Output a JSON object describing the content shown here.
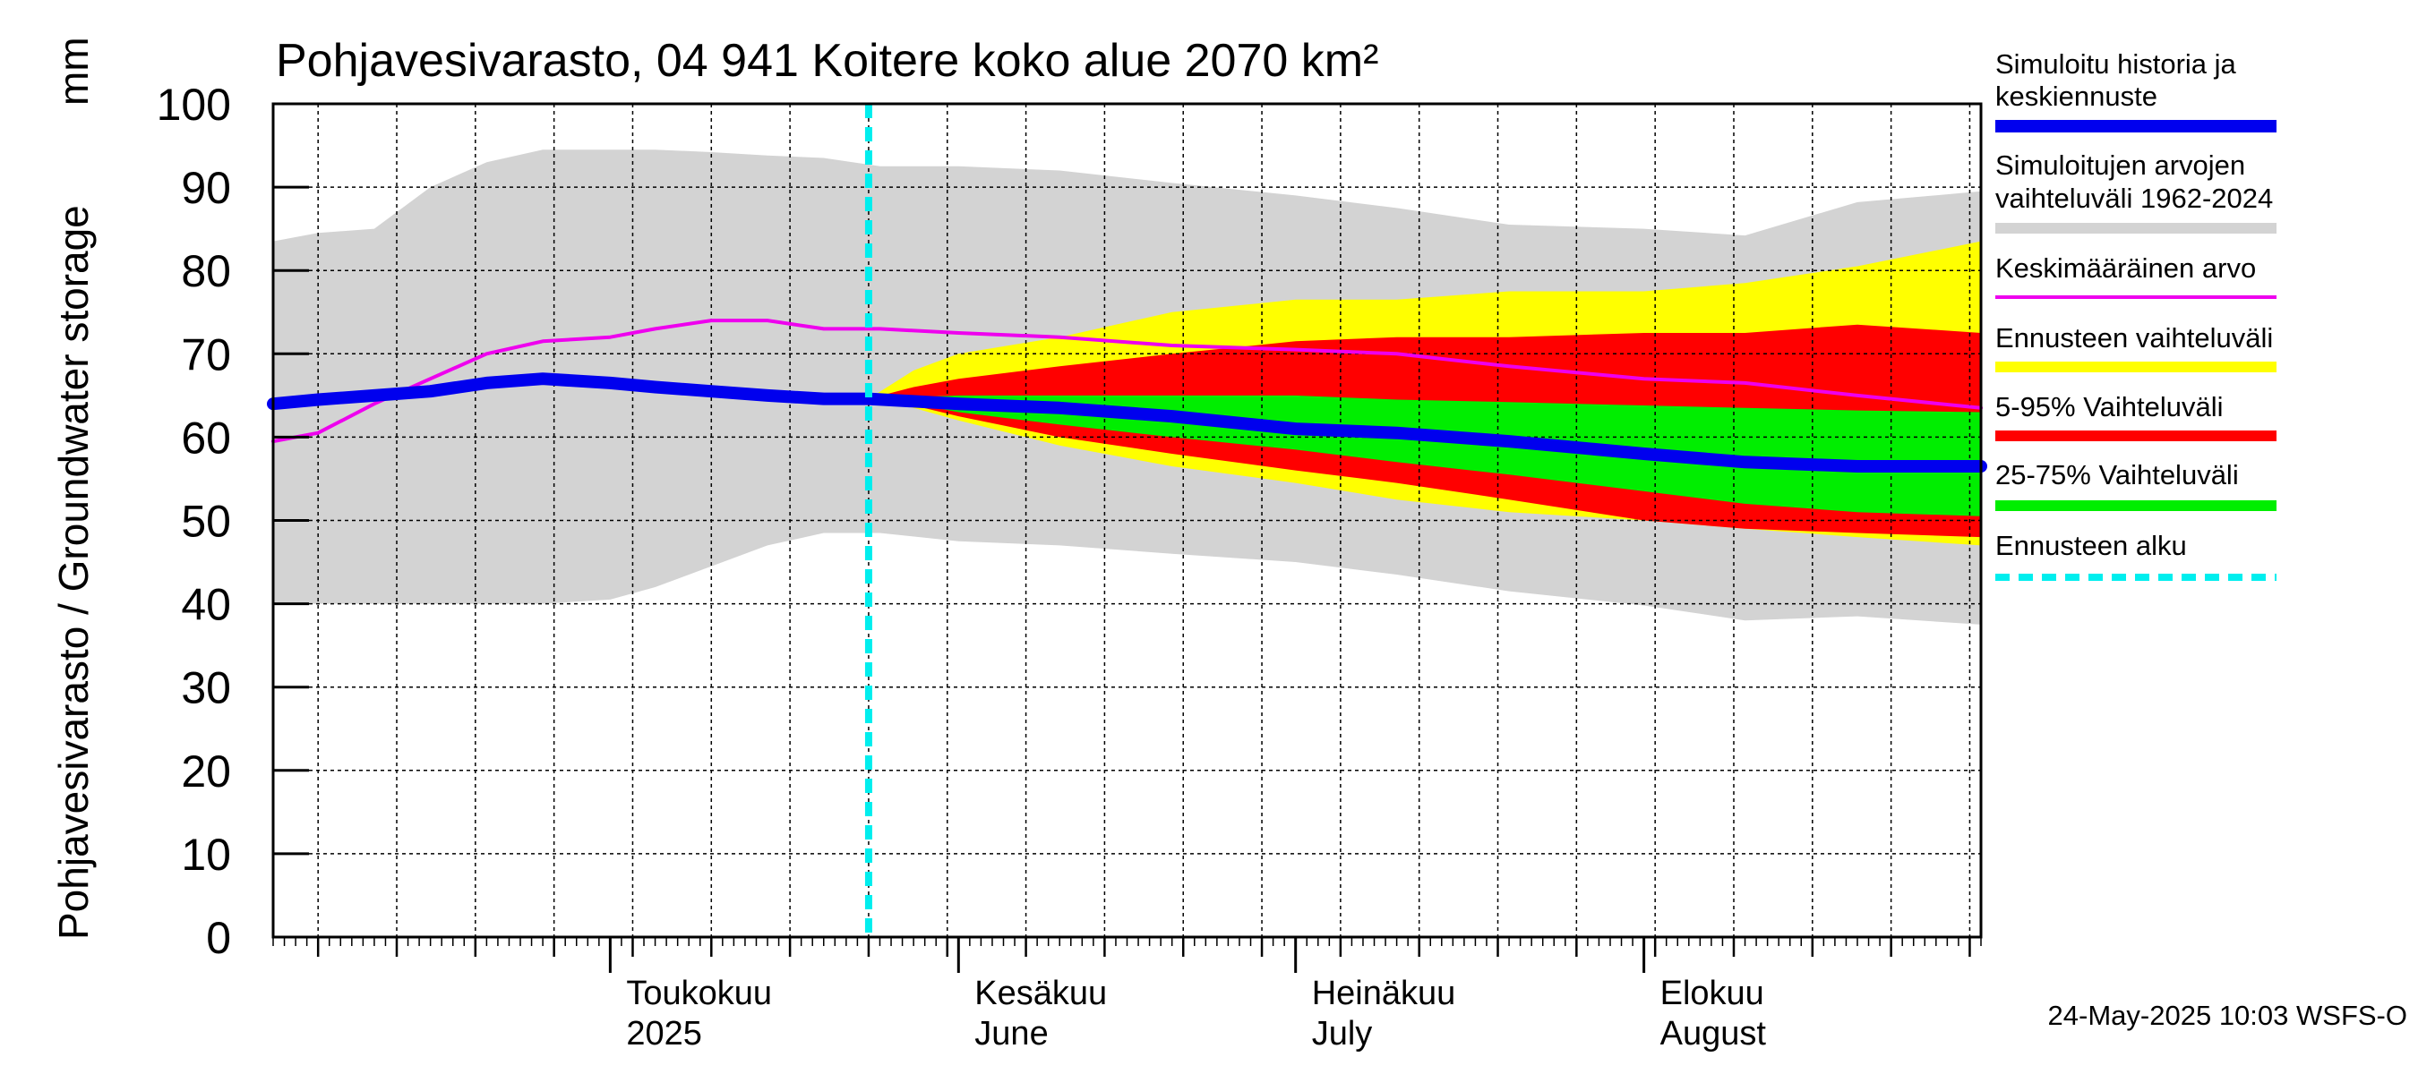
{
  "chart_data": {
    "type": "area",
    "title": "Pohjavesivarasto, 04 941 Koitere koko alue 2070 km²",
    "ylabel": "Pohjavesivarasto / Groundwater storage",
    "yunit": "mm",
    "ylim": [
      0,
      100
    ],
    "yticks": [
      0,
      10,
      20,
      30,
      40,
      50,
      60,
      70,
      80,
      90,
      100
    ],
    "xlim": [
      "2025-04-01",
      "2025-08-31"
    ],
    "grid": true,
    "x_labels": [
      {
        "date": "2025-05-01",
        "line1": "Toukokuu",
        "line2": "2025"
      },
      {
        "date": "2025-06-01",
        "line1": "Kesäkuu",
        "line2": "June"
      },
      {
        "date": "2025-07-01",
        "line1": "Heinäkuu",
        "line2": "July"
      },
      {
        "date": "2025-08-01",
        "line1": "Elokuu",
        "line2": "August"
      }
    ],
    "forecast_start": "2025-05-24",
    "legend_position": "right",
    "legend": [
      {
        "label": "Simuloitu historia ja keskiennuste",
        "lines": [
          "Simuloitu historia ja",
          "keskiennuste"
        ],
        "color": "#0000ee",
        "style": "thick"
      },
      {
        "label": "Simuloitujen arvojen vaihteluväli 1962-2024",
        "lines": [
          "Simuloitujen arvojen",
          "vaihteluväli 1962-2024"
        ],
        "color": "#d3d3d3",
        "style": "band"
      },
      {
        "label": "Keskimääräinen arvo",
        "lines": [
          "Keskimääräinen arvo"
        ],
        "color": "#ee00ee",
        "style": "line"
      },
      {
        "label": "Ennusteen vaihteluväli",
        "lines": [
          "Ennusteen vaihteluväli"
        ],
        "color": "#ffff00",
        "style": "band"
      },
      {
        "label": "5-95% Vaihteluväli",
        "lines": [
          "5-95% Vaihteluväli"
        ],
        "color": "#ff0000",
        "style": "band"
      },
      {
        "label": "25-75% Vaihteluväli",
        "lines": [
          "25-75% Vaihteluväli"
        ],
        "color": "#00ee00",
        "style": "band"
      },
      {
        "label": "Ennusteen alku",
        "lines": [
          "Ennusteen alku"
        ],
        "color": "#00eeee",
        "style": "dashed"
      }
    ],
    "series": [
      {
        "name": "Simuloitujen arvojen vaihteluväli 1962-2024",
        "kind": "band",
        "color": "#d3d3d3",
        "x": [
          "2025-04-01",
          "2025-04-05",
          "2025-04-10",
          "2025-04-15",
          "2025-04-20",
          "2025-04-25",
          "2025-05-01",
          "2025-05-05",
          "2025-05-10",
          "2025-05-15",
          "2025-05-20",
          "2025-05-25",
          "2025-06-01",
          "2025-06-10",
          "2025-06-20",
          "2025-07-01",
          "2025-07-10",
          "2025-07-20",
          "2025-08-01",
          "2025-08-10",
          "2025-08-20",
          "2025-08-31"
        ],
        "upper": [
          83.5,
          84.5,
          85,
          90,
          93,
          94.5,
          94.5,
          94.5,
          94.2,
          93.8,
          93.5,
          92.5,
          92.5,
          92,
          90.5,
          89,
          87.5,
          85.5,
          85,
          84.2,
          88.2,
          89.5
        ],
        "lower": [
          40,
          40,
          40,
          40,
          40,
          40,
          40.5,
          42,
          44.5,
          47,
          48.5,
          48.5,
          47.5,
          47,
          46,
          45,
          43.5,
          41.5,
          39.8,
          38,
          38.5,
          37.5
        ]
      },
      {
        "name": "Ennusteen vaihteluväli",
        "kind": "band",
        "color": "#ffff00",
        "x": [
          "2025-05-24",
          "2025-05-28",
          "2025-06-01",
          "2025-06-10",
          "2025-06-20",
          "2025-07-01",
          "2025-07-10",
          "2025-07-20",
          "2025-08-01",
          "2025-08-10",
          "2025-08-20",
          "2025-08-31"
        ],
        "upper": [
          64.6,
          68,
          70,
          72,
          75,
          76.5,
          76.5,
          77.5,
          77.5,
          78.5,
          80.5,
          83.5
        ],
        "lower": [
          64.6,
          63.5,
          62,
          59,
          56.5,
          54.5,
          52.5,
          51,
          50,
          49,
          48,
          47
        ]
      },
      {
        "name": "5-95% Vaihteluväli",
        "kind": "band",
        "color": "#ff0000",
        "x": [
          "2025-05-24",
          "2025-05-28",
          "2025-06-01",
          "2025-06-10",
          "2025-06-20",
          "2025-07-01",
          "2025-07-10",
          "2025-07-20",
          "2025-08-01",
          "2025-08-10",
          "2025-08-20",
          "2025-08-31"
        ],
        "upper": [
          64.6,
          66,
          67,
          68.5,
          70,
          71.5,
          72,
          72,
          72.5,
          72.5,
          73.5,
          72.5
        ],
        "lower": [
          64.6,
          63.8,
          62.5,
          60,
          58,
          56,
          54.5,
          52.5,
          50,
          49,
          48.5,
          48
        ]
      },
      {
        "name": "25-75% Vaihteluväli",
        "kind": "band",
        "color": "#00ee00",
        "x": [
          "2025-05-24",
          "2025-05-28",
          "2025-06-01",
          "2025-06-10",
          "2025-06-20",
          "2025-07-01",
          "2025-07-10",
          "2025-07-20",
          "2025-08-01",
          "2025-08-10",
          "2025-08-20",
          "2025-08-31"
        ],
        "upper": [
          64.6,
          64.8,
          65,
          65,
          65,
          65,
          64.5,
          64.2,
          63.8,
          63.5,
          63.2,
          63
        ],
        "lower": [
          64.6,
          64,
          63,
          61.5,
          60,
          58.5,
          57,
          55.5,
          53.5,
          52,
          51,
          50.5
        ]
      },
      {
        "name": "Keskimääräinen arvo",
        "kind": "line",
        "color": "#ee00ee",
        "x": [
          "2025-04-01",
          "2025-04-05",
          "2025-04-10",
          "2025-04-15",
          "2025-04-20",
          "2025-04-25",
          "2025-05-01",
          "2025-05-05",
          "2025-05-10",
          "2025-05-15",
          "2025-05-20",
          "2025-05-25",
          "2025-06-01",
          "2025-06-10",
          "2025-06-20",
          "2025-07-01",
          "2025-07-10",
          "2025-07-20",
          "2025-08-01",
          "2025-08-10",
          "2025-08-20",
          "2025-08-31"
        ],
        "y": [
          59.5,
          60.5,
          64,
          67,
          70,
          71.5,
          72,
          73,
          74,
          74,
          73,
          73,
          72.5,
          72,
          71,
          70.5,
          70,
          68.5,
          67,
          66.5,
          65,
          63.5
        ]
      },
      {
        "name": "Simuloitu historia ja keskiennuste",
        "kind": "line",
        "color": "#0000ee",
        "x": [
          "2025-04-01",
          "2025-04-05",
          "2025-04-10",
          "2025-04-15",
          "2025-04-20",
          "2025-04-25",
          "2025-05-01",
          "2025-05-05",
          "2025-05-10",
          "2025-05-15",
          "2025-05-20",
          "2025-05-24",
          "2025-06-01",
          "2025-06-10",
          "2025-06-20",
          "2025-07-01",
          "2025-07-10",
          "2025-07-20",
          "2025-08-01",
          "2025-08-10",
          "2025-08-20",
          "2025-08-31"
        ],
        "y": [
          64,
          64.5,
          65,
          65.5,
          66.5,
          67,
          66.5,
          66,
          65.5,
          65,
          64.6,
          64.6,
          64,
          63.5,
          62.5,
          61,
          60.5,
          59.5,
          58,
          57,
          56.5,
          56.5
        ]
      }
    ]
  },
  "footer": {
    "timestamp": "24-May-2025 10:03 WSFS-O"
  }
}
